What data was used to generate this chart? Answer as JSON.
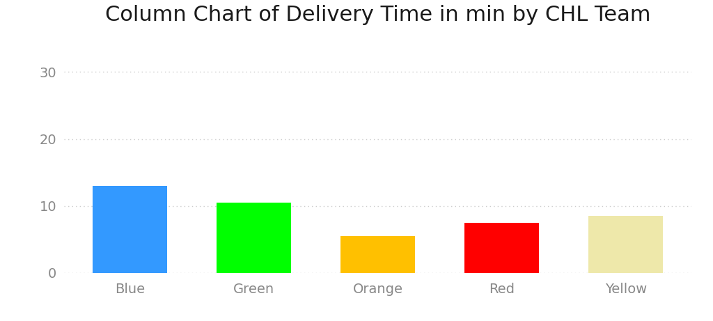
{
  "title": "Column Chart of Delivery Time in min by CHL Team",
  "categories": [
    "Blue",
    "Green",
    "Orange",
    "Red",
    "Yellow"
  ],
  "values": [
    13.0,
    10.5,
    5.5,
    7.5,
    8.5
  ],
  "bar_colors": [
    "#3399FF",
    "#00FF00",
    "#FFC000",
    "#FF0000",
    "#EEE8AA"
  ],
  "ylim": [
    0,
    35
  ],
  "yticks": [
    0,
    10,
    20,
    30
  ],
  "background_color": "#FFFFFF",
  "title_fontsize": 22,
  "tick_fontsize": 14,
  "grid_color": "#CCCCCC",
  "bar_width": 0.6
}
